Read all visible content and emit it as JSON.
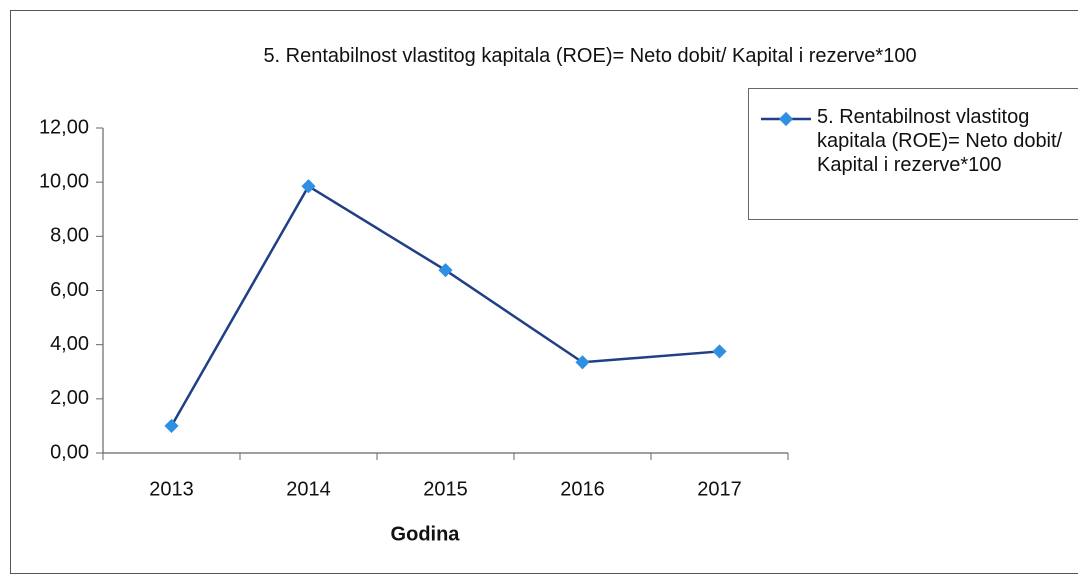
{
  "chart_data": {
    "type": "line",
    "title": "5. Rentabilnost vlastitog kapitala (ROE)= Neto dobit/ Kapital i rezerve*100",
    "x_label": "Godina",
    "categories": [
      "2013",
      "2014",
      "2015",
      "2016",
      "2017"
    ],
    "series": [
      {
        "name": "5. Rentabilnost vlastitog kapitala (ROE)= Neto dobit/ Kapital i rezerve*100",
        "color": "#1f3f86",
        "marker_color": "#2f8fe0",
        "values": [
          1.0,
          9.85,
          6.75,
          3.35,
          3.75
        ]
      }
    ],
    "ylim": [
      0,
      12
    ],
    "yticks": [
      {
        "value": 0,
        "label": "0,00"
      },
      {
        "value": 2,
        "label": "2,00"
      },
      {
        "value": 4,
        "label": "4,00"
      },
      {
        "value": 6,
        "label": "6,00"
      },
      {
        "value": 8,
        "label": "8,00"
      },
      {
        "value": 10,
        "label": "10,00"
      },
      {
        "value": 12,
        "label": "12,00"
      }
    ],
    "legend": "right"
  }
}
